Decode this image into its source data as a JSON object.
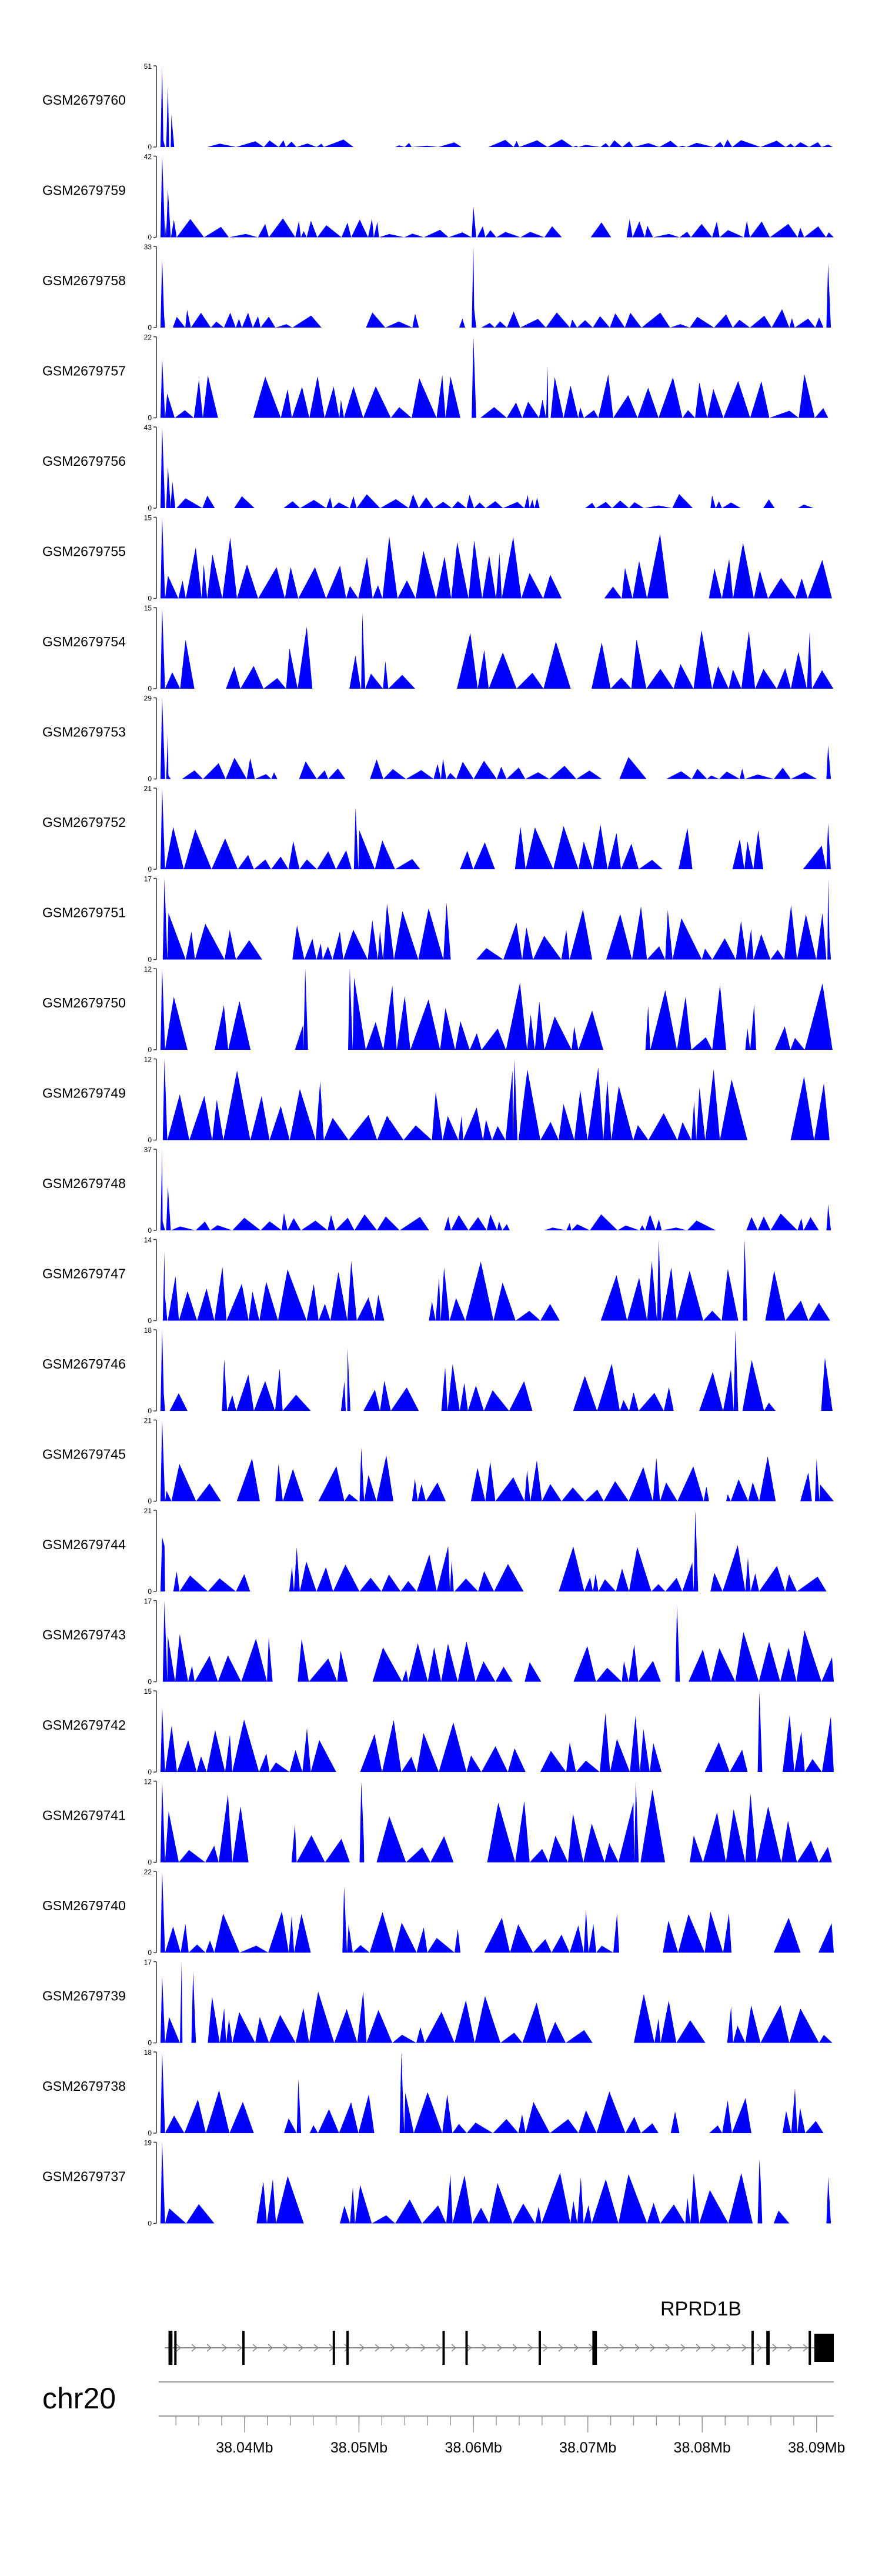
{
  "chart_data": {
    "type": "area",
    "chromosome": "chr20",
    "gene": "RPRD1B",
    "fill_color": "#0000FF",
    "x_range": [
      38.0325,
      38.0915
    ],
    "axis_ticks": [
      38.04,
      38.05,
      38.06,
      38.07,
      38.08,
      38.09
    ],
    "axis_tick_labels": [
      "38.04Mb",
      "38.05Mb",
      "38.06Mb",
      "38.07Mb",
      "38.08Mb",
      "38.09Mb"
    ],
    "minor_tick_step": 0.002,
    "exons": [
      [
        38.03335,
        38.0337
      ],
      [
        38.03385,
        38.034
      ],
      [
        38.0398,
        38.04
      ],
      [
        38.0477,
        38.0479
      ],
      [
        38.0489,
        38.0491
      ],
      [
        38.0573,
        38.0575
      ],
      [
        38.0593,
        38.0595
      ],
      [
        38.0657,
        38.0659
      ],
      [
        38.0704,
        38.0708
      ],
      [
        38.0843,
        38.0845
      ],
      [
        38.0856,
        38.0859
      ],
      [
        38.0893,
        38.0895
      ],
      [
        38.0898,
        38.0915
      ]
    ],
    "series": [
      {
        "name": "GSM2679760",
        "ymax": "51",
        "peak_scale": 51,
        "seed": 11,
        "base_max": 5,
        "spikes": [
          [
            38.0328,
            51
          ],
          [
            38.0333,
            38
          ],
          [
            38.0336,
            20
          ]
        ]
      },
      {
        "name": "GSM2679759",
        "ymax": "42",
        "peak_scale": 42,
        "seed": 12,
        "base_max": 10,
        "spikes": [
          [
            38.0328,
            42
          ],
          [
            38.0333,
            25
          ],
          [
            38.06,
            16
          ]
        ]
      },
      {
        "name": "GSM2679758",
        "ymax": "33",
        "peak_scale": 33,
        "seed": 13,
        "base_max": 8,
        "spikes": [
          [
            38.0328,
            28
          ],
          [
            38.06,
            33
          ],
          [
            38.091,
            26
          ]
        ]
      },
      {
        "name": "GSM2679757",
        "ymax": "22",
        "peak_scale": 22,
        "seed": 14,
        "base_max": 12,
        "spikes": [
          [
            38.0328,
            16
          ],
          [
            38.06,
            22
          ],
          [
            38.0665,
            14
          ]
        ]
      },
      {
        "name": "GSM2679756",
        "ymax": "43",
        "peak_scale": 43,
        "seed": 15,
        "base_max": 8,
        "spikes": [
          [
            38.0328,
            43
          ],
          [
            38.0333,
            22
          ],
          [
            38.0337,
            14
          ]
        ]
      },
      {
        "name": "GSM2679755",
        "ymax": "15",
        "peak_scale": 15,
        "seed": 16,
        "base_max": 12,
        "spikes": [
          [
            38.0328,
            15
          ]
        ]
      },
      {
        "name": "GSM2679754",
        "ymax": "15",
        "peak_scale": 15,
        "seed": 17,
        "base_max": 12,
        "spikes": [
          [
            38.0328,
            15
          ],
          [
            38.0503,
            14
          ]
        ]
      },
      {
        "name": "GSM2679753",
        "ymax": "29",
        "peak_scale": 29,
        "seed": 18,
        "base_max": 8,
        "spikes": [
          [
            38.0328,
            29
          ],
          [
            38.0333,
            16
          ],
          [
            38.091,
            12
          ]
        ]
      },
      {
        "name": "GSM2679752",
        "ymax": "21",
        "peak_scale": 21,
        "seed": 19,
        "base_max": 12,
        "spikes": [
          [
            38.0328,
            21
          ],
          [
            38.0497,
            16
          ],
          [
            38.091,
            12
          ]
        ]
      },
      {
        "name": "GSM2679751",
        "ymax": "17",
        "peak_scale": 17,
        "seed": 20,
        "base_max": 12,
        "spikes": [
          [
            38.033,
            17
          ],
          [
            38.091,
            17
          ]
        ]
      },
      {
        "name": "GSM2679750",
        "ymax": "12",
        "peak_scale": 12,
        "seed": 21,
        "base_max": 11,
        "spikes": [
          [
            38.0328,
            12
          ],
          [
            38.0453,
            12
          ],
          [
            38.0492,
            12
          ]
        ]
      },
      {
        "name": "GSM2679749",
        "ymax": "12",
        "peak_scale": 12,
        "seed": 22,
        "base_max": 11,
        "spikes": [
          [
            38.033,
            12
          ],
          [
            38.0636,
            12
          ]
        ]
      },
      {
        "name": "GSM2679748",
        "ymax": "37",
        "peak_scale": 37,
        "seed": 23,
        "base_max": 8,
        "spikes": [
          [
            38.0328,
            37
          ],
          [
            38.0333,
            20
          ],
          [
            38.091,
            12
          ]
        ]
      },
      {
        "name": "GSM2679747",
        "ymax": "14",
        "peak_scale": 14,
        "seed": 24,
        "base_max": 11,
        "spikes": [
          [
            38.033,
            12
          ],
          [
            38.0762,
            14
          ],
          [
            38.0837,
            14
          ]
        ]
      },
      {
        "name": "GSM2679746",
        "ymax": "18",
        "peak_scale": 18,
        "seed": 25,
        "base_max": 12,
        "spikes": [
          [
            38.0328,
            18
          ],
          [
            38.049,
            14
          ],
          [
            38.0829,
            18
          ]
        ]
      },
      {
        "name": "GSM2679745",
        "ymax": "21",
        "peak_scale": 21,
        "seed": 26,
        "base_max": 12,
        "spikes": [
          [
            38.0328,
            21
          ],
          [
            38.0502,
            14
          ],
          [
            38.09,
            11
          ]
        ]
      },
      {
        "name": "GSM2679744",
        "ymax": "21",
        "peak_scale": 21,
        "seed": 27,
        "base_max": 12,
        "spikes": [
          [
            38.0328,
            14
          ],
          [
            38.0794,
            21
          ],
          [
            38.0581,
            8
          ]
        ]
      },
      {
        "name": "GSM2679743",
        "ymax": "17",
        "peak_scale": 17,
        "seed": 28,
        "base_max": 11,
        "spikes": [
          [
            38.033,
            17
          ],
          [
            38.0778,
            16
          ]
        ]
      },
      {
        "name": "GSM2679742",
        "ymax": "15",
        "peak_scale": 15,
        "seed": 29,
        "base_max": 11,
        "spikes": [
          [
            38.0328,
            12
          ],
          [
            38.085,
            15
          ]
        ]
      },
      {
        "name": "GSM2679741",
        "ymax": "12",
        "peak_scale": 12,
        "seed": 30,
        "base_max": 11,
        "spikes": [
          [
            38.0328,
            12
          ],
          [
            38.0502,
            12
          ],
          [
            38.0742,
            12
          ]
        ]
      },
      {
        "name": "GSM2679740",
        "ymax": "22",
        "peak_scale": 22,
        "seed": 31,
        "base_max": 12,
        "spikes": [
          [
            38.0328,
            22
          ],
          [
            38.0487,
            18
          ]
        ]
      },
      {
        "name": "GSM2679739",
        "ymax": "17",
        "peak_scale": 17,
        "seed": 32,
        "base_max": 11,
        "spikes": [
          [
            38.0328,
            14
          ],
          [
            38.0345,
            17
          ],
          [
            38.0355,
            15
          ]
        ]
      },
      {
        "name": "GSM2679738",
        "ymax": "18",
        "peak_scale": 18,
        "seed": 33,
        "base_max": 10,
        "spikes": [
          [
            38.0328,
            18
          ],
          [
            38.0537,
            18
          ],
          [
            38.0447,
            12
          ]
        ]
      },
      {
        "name": "GSM2679737",
        "ymax": "19",
        "peak_scale": 19,
        "seed": 34,
        "base_max": 12,
        "spikes": [
          [
            38.0328,
            19
          ],
          [
            38.085,
            15
          ],
          [
            38.091,
            11
          ]
        ]
      }
    ]
  }
}
